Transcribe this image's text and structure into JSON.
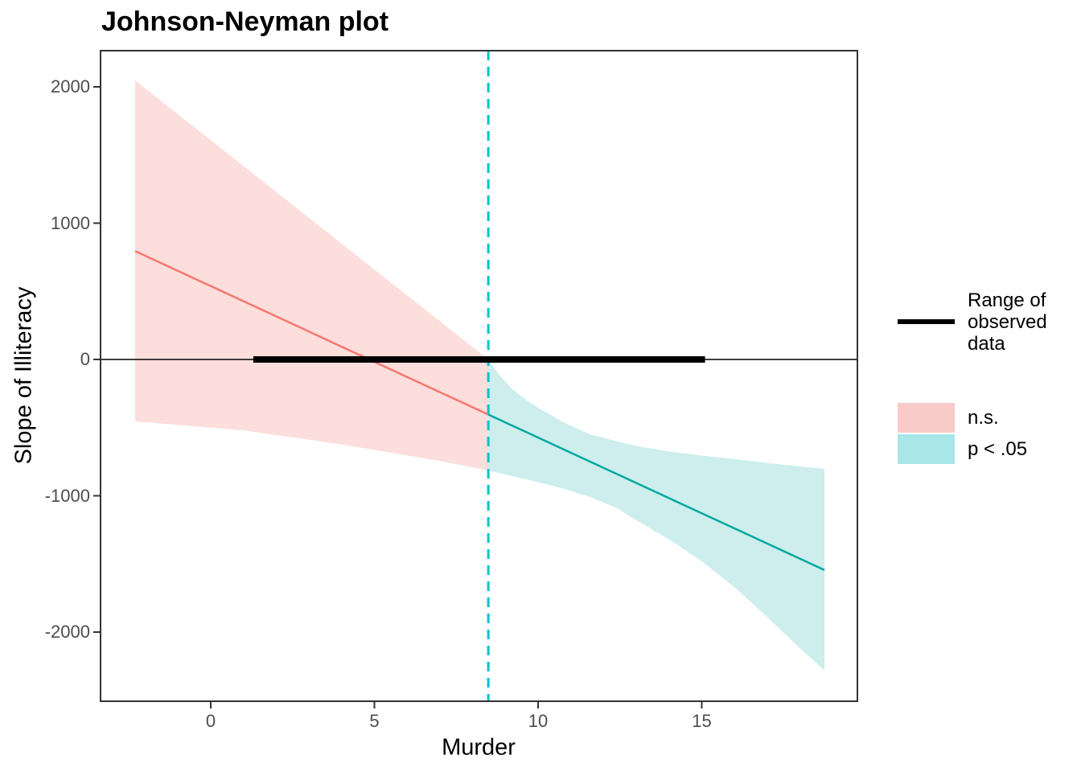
{
  "chart_data": {
    "type": "line",
    "title": "Johnson-Neyman plot",
    "xlabel": "Murder",
    "ylabel": "Slope of Illiteracy",
    "xlim": [
      -3.4,
      19.8
    ],
    "ylim": [
      -2510,
      2270
    ],
    "grid": false,
    "legend_position": "right",
    "x_ticks": [
      {
        "value": 0,
        "label": "0"
      },
      {
        "value": 5,
        "label": "5"
      },
      {
        "value": 10,
        "label": "10"
      },
      {
        "value": 15,
        "label": "15"
      }
    ],
    "y_ticks": [
      {
        "value": 2000,
        "label": "2000"
      },
      {
        "value": 1000,
        "label": "1000"
      },
      {
        "value": 0,
        "label": "0"
      },
      {
        "value": -1000,
        "label": "-1000"
      },
      {
        "value": -2000,
        "label": "-2000"
      }
    ],
    "zero_line_y": 0,
    "jn_point_x": 8.48,
    "vline": {
      "x": 8.48,
      "color": "#00C4CD",
      "style": "dashed"
    },
    "observed_range": {
      "x_start": 1.3,
      "x_end": 15.1,
      "y": 0,
      "color": "#000000"
    },
    "regions": [
      {
        "name": "n.s.",
        "x_from": -2.31,
        "x_to": 8.48,
        "line_color": "#F8766D",
        "fill_color": "#FCDEDC",
        "line": [
          [
            -2.31,
            795
          ],
          [
            8.48,
            -404
          ]
        ],
        "ci_upper": [
          [
            -2.31,
            2047
          ],
          [
            8.48,
            0
          ]
        ],
        "ci_lower": [
          [
            -2.31,
            -454
          ],
          [
            -1,
            -480
          ],
          [
            0.32,
            -507
          ],
          [
            1,
            -520
          ],
          [
            2,
            -555
          ],
          [
            3,
            -588
          ],
          [
            4,
            -625
          ],
          [
            5,
            -663
          ],
          [
            6,
            -705
          ],
          [
            7,
            -745
          ],
          [
            8.48,
            -814
          ]
        ]
      },
      {
        "name": "p < .05",
        "x_from": 8.48,
        "x_to": 18.75,
        "line_color": "#00A8A0",
        "fill_color": "#CDEEED",
        "line": [
          [
            8.48,
            -404
          ],
          [
            18.75,
            -1545
          ]
        ],
        "ci_upper": [
          [
            8.48,
            0
          ],
          [
            8.8,
            -110
          ],
          [
            9.2,
            -215
          ],
          [
            9.6,
            -290
          ],
          [
            10,
            -355
          ],
          [
            10.8,
            -465
          ],
          [
            11.6,
            -550
          ],
          [
            12.4,
            -600
          ],
          [
            13,
            -635
          ],
          [
            14,
            -675
          ],
          [
            15,
            -705
          ],
          [
            16,
            -730
          ],
          [
            17,
            -760
          ],
          [
            18,
            -785
          ],
          [
            18.75,
            -802
          ]
        ],
        "ci_lower": [
          [
            8.48,
            -814
          ],
          [
            9.2,
            -855
          ],
          [
            10,
            -900
          ],
          [
            10.8,
            -950
          ],
          [
            11.6,
            -1010
          ],
          [
            12.4,
            -1090
          ],
          [
            13,
            -1180
          ],
          [
            14,
            -1320
          ],
          [
            15,
            -1480
          ],
          [
            16,
            -1670
          ],
          [
            17,
            -1890
          ],
          [
            18,
            -2120
          ],
          [
            18.75,
            -2280
          ]
        ]
      }
    ]
  },
  "legend": {
    "items": [
      {
        "label": "Range of observed data",
        "key_type": "line",
        "key_color": "#000000"
      },
      {
        "label": "n.s.",
        "key_type": "fill",
        "key_color": "#F9CBC8"
      },
      {
        "label": "p < .05",
        "key_type": "fill",
        "key_color": "#A8E6E8"
      }
    ]
  },
  "style_colors": {
    "axis_text": "#4d4d4d",
    "panel_border": "#333333",
    "zero_line": "#000000"
  }
}
